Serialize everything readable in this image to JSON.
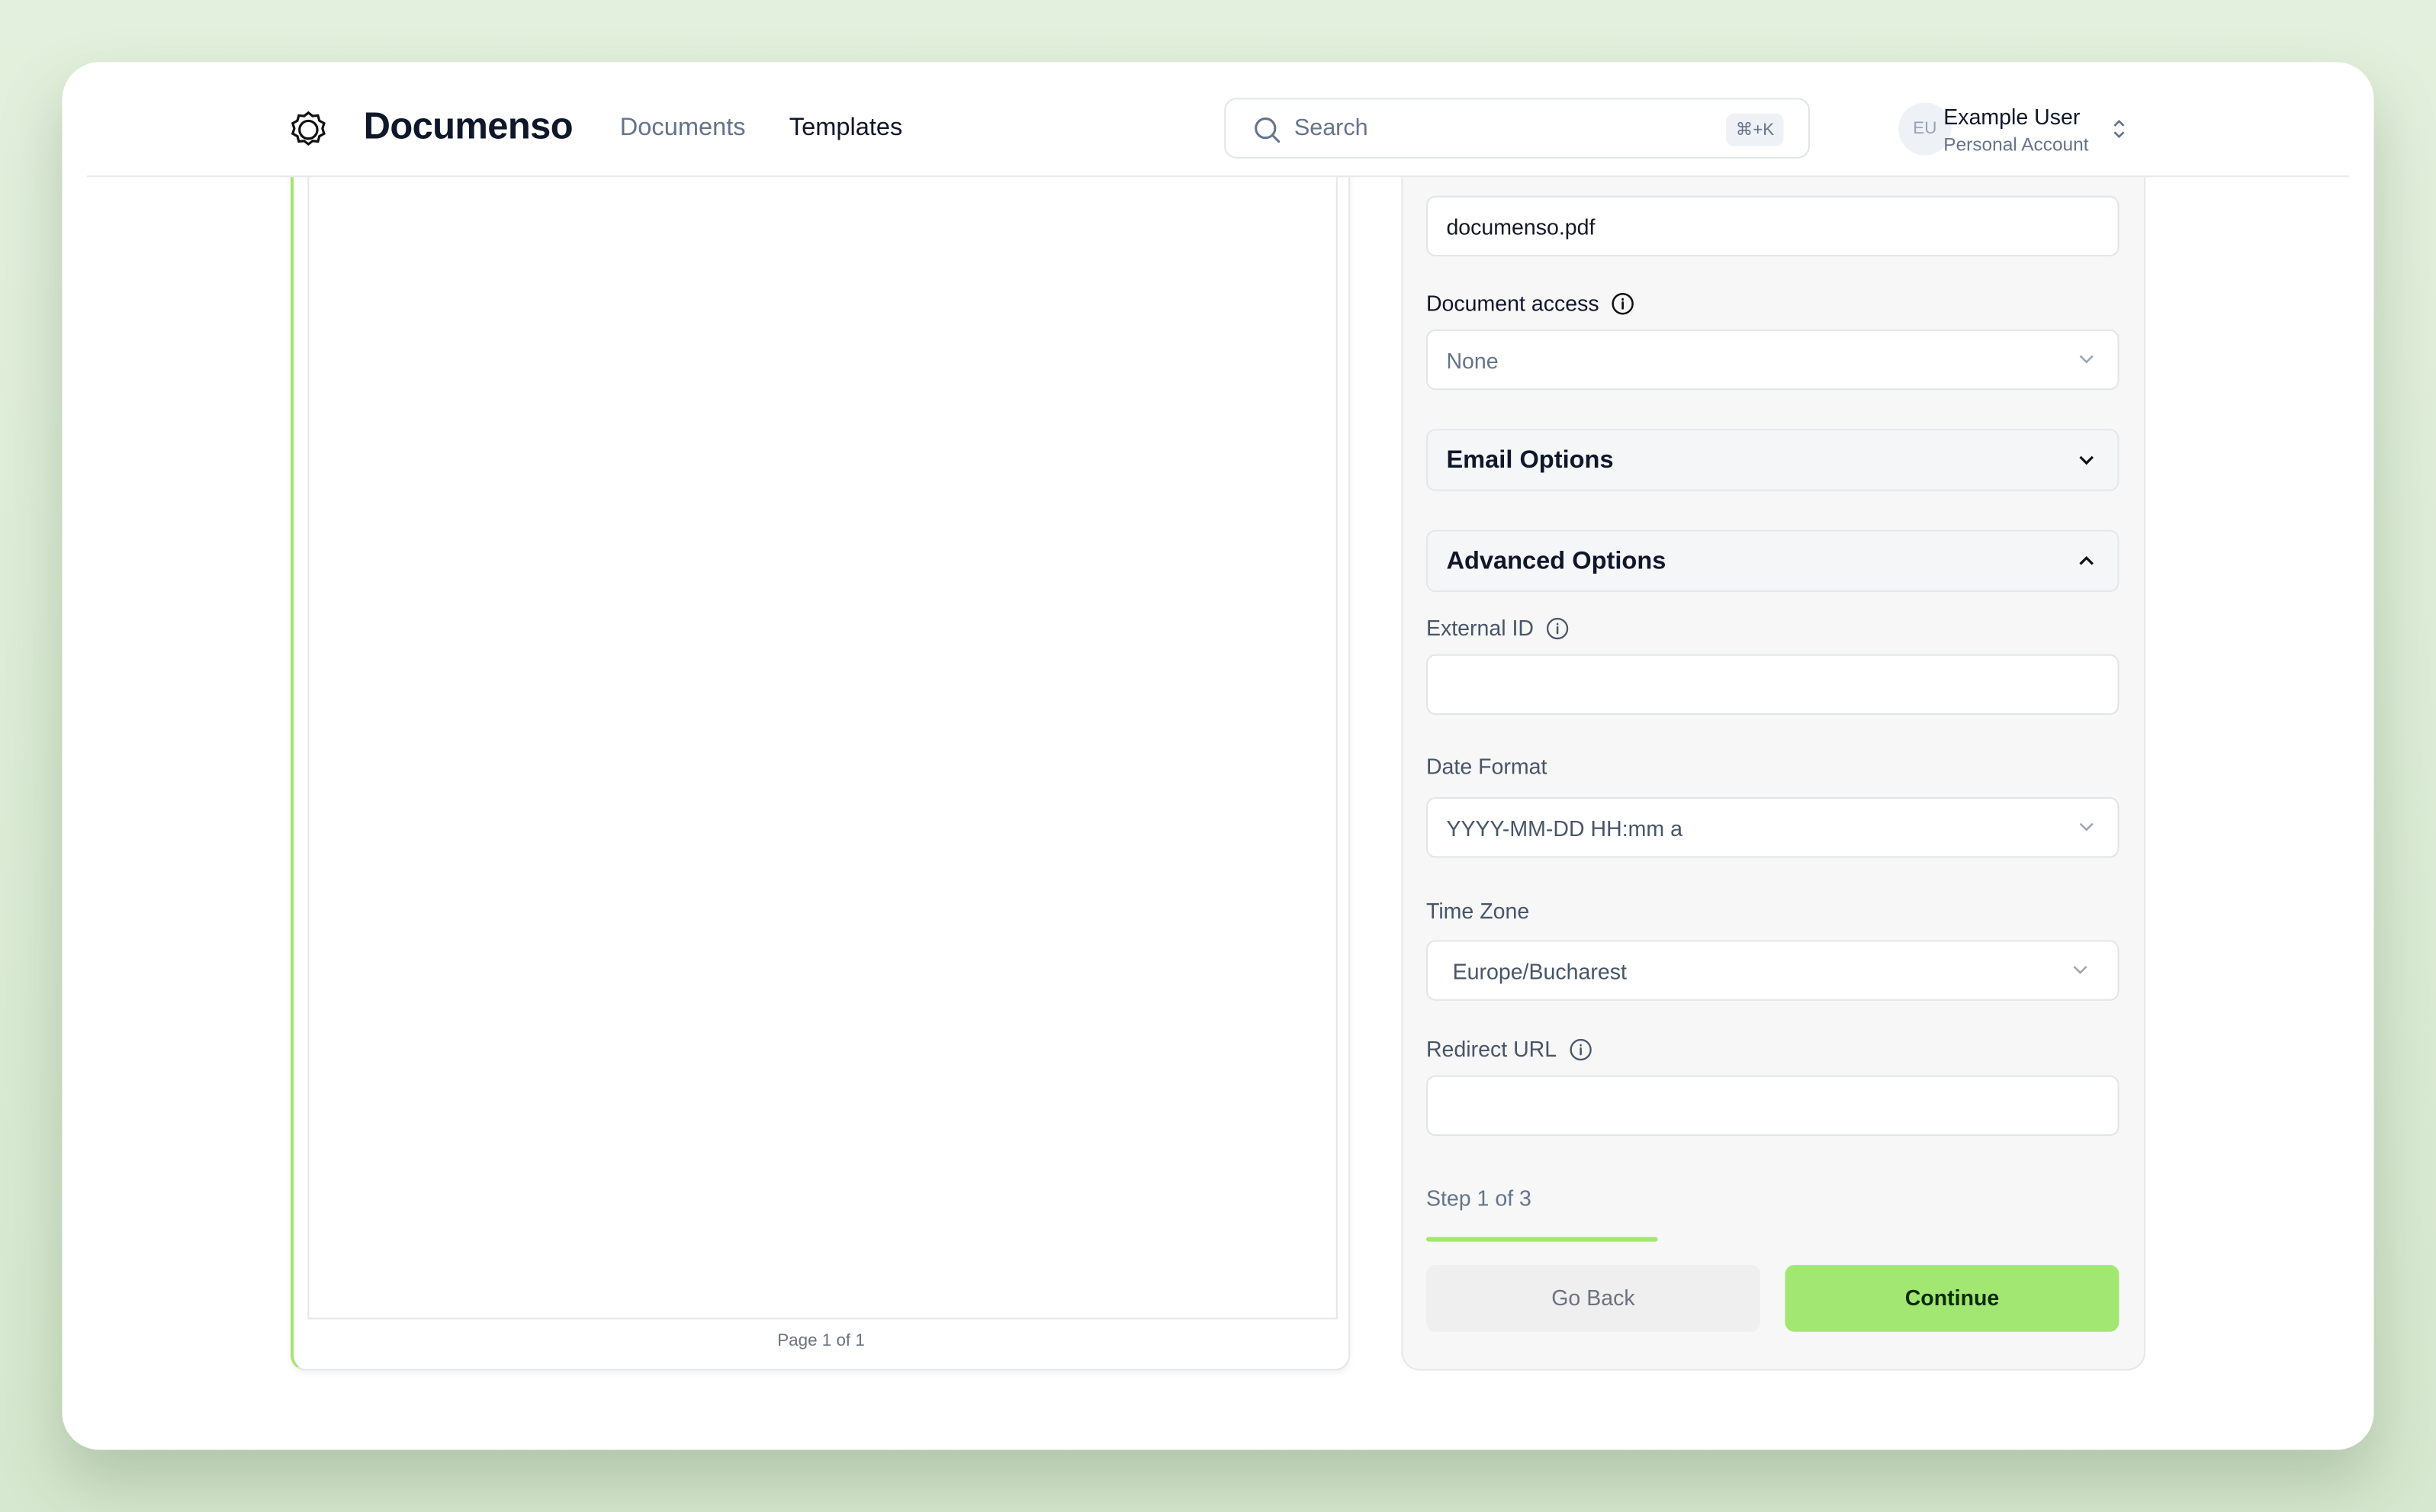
{
  "header": {
    "brand": "Documenso",
    "nav": [
      {
        "label": "Documents",
        "active": false
      },
      {
        "label": "Templates",
        "active": true
      }
    ],
    "search": {
      "placeholder": "Search",
      "shortcut": "⌘+K"
    },
    "user": {
      "initials": "EU",
      "name": "Example User",
      "account": "Personal Account"
    }
  },
  "document": {
    "page_label": "Page 1 of 1"
  },
  "form": {
    "title_value": "documenso.pdf",
    "document_access": {
      "label": "Document access",
      "value": "None"
    },
    "email_options": {
      "label": "Email Options",
      "expanded": false
    },
    "advanced_options": {
      "label": "Advanced Options",
      "expanded": true
    },
    "external_id": {
      "label": "External ID",
      "value": ""
    },
    "date_format": {
      "label": "Date Format",
      "value": "YYYY-MM-DD HH:mm a"
    },
    "time_zone": {
      "label": "Time Zone",
      "value": "Europe/Bucharest"
    },
    "redirect_url": {
      "label": "Redirect URL",
      "value": ""
    },
    "step": {
      "label": "Step 1 of 3",
      "progress": 0.3333
    },
    "go_back": "Go Back",
    "continue": "Continue"
  },
  "colors": {
    "accent": "#a2e771",
    "background": "#e0efda"
  }
}
